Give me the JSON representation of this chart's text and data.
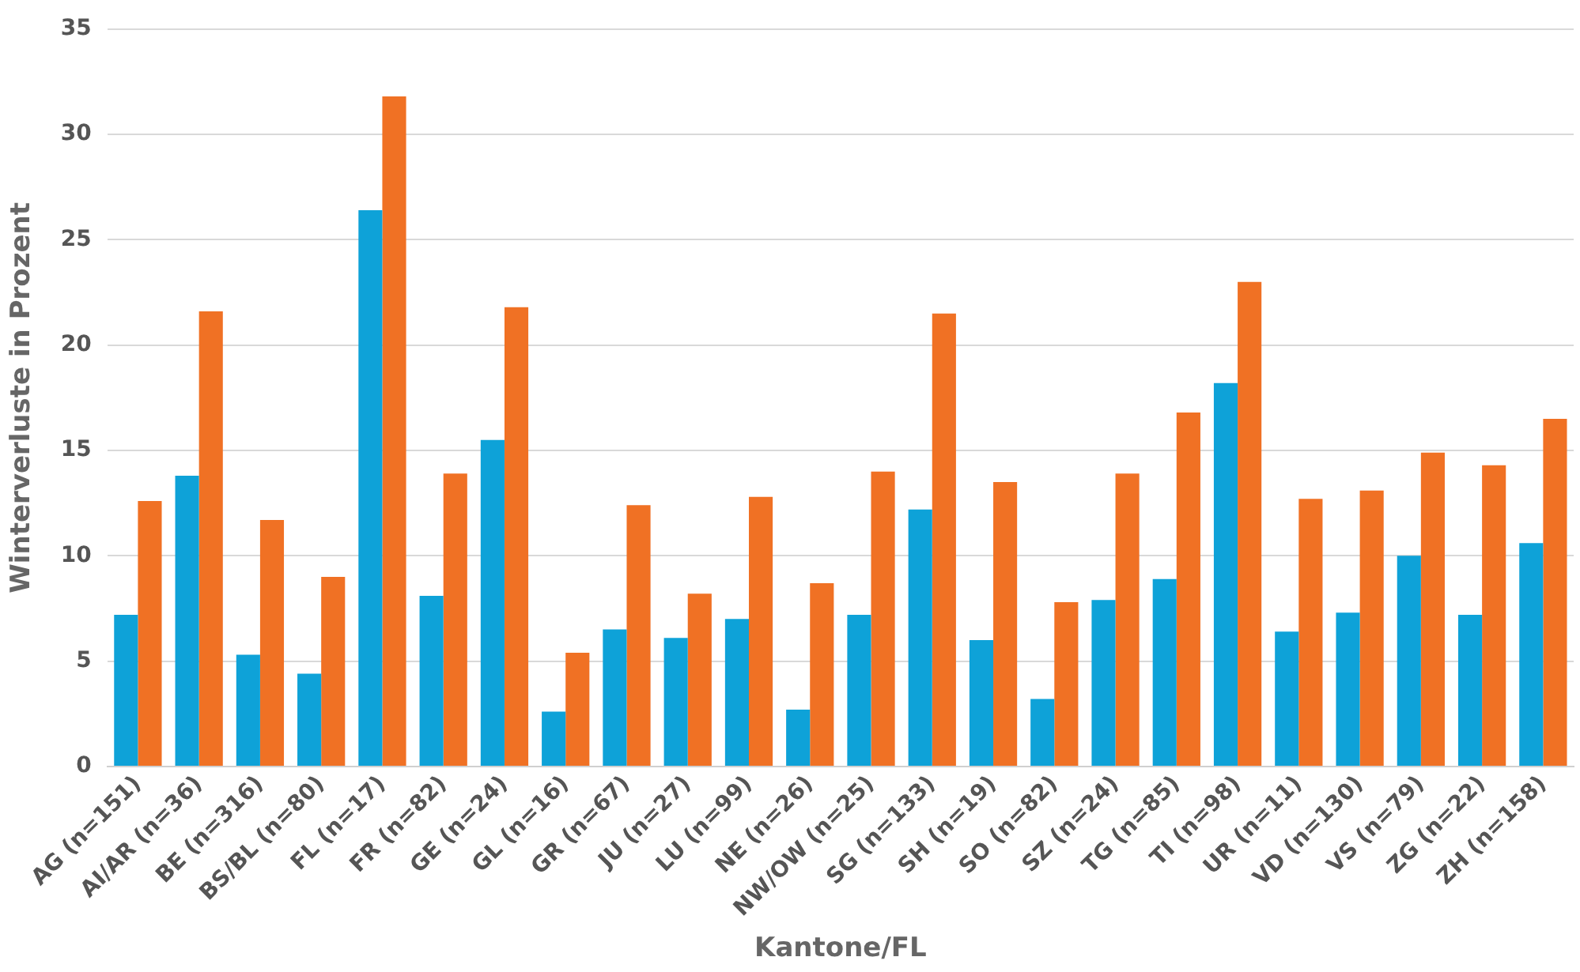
{
  "chart_data": {
    "type": "bar",
    "xlabel": "Kantone/FL",
    "ylabel": "Winterverluste in Prozent",
    "categories": [
      "AG (n=151)",
      "AI/AR (n=36)",
      "BE (n=316)",
      "BS/BL (n=80)",
      "FL (n=17)",
      "FR (n=82)",
      "GE (n=24)",
      "GL (n=16)",
      "GR (n=67)",
      "JU (n=27)",
      "LU (n=99)",
      "NE (n=26)",
      "NW/OW (n=25)",
      "SG (n=133)",
      "SH (n=19)",
      "SO (n=82)",
      "SZ (n=24)",
      "TG (n=85)",
      "TI (n=98)",
      "UR (n=11)",
      "VD (n=130)",
      "VS (n=79)",
      "ZG (n=22)",
      "ZH (n=158)"
    ],
    "series": [
      {
        "color": "#0ea2d8",
        "values": [
          7.2,
          13.8,
          5.3,
          4.4,
          26.4,
          8.1,
          15.5,
          2.6,
          6.5,
          6.1,
          7.0,
          2.7,
          7.2,
          12.2,
          6.0,
          3.2,
          7.9,
          8.9,
          18.2,
          6.4,
          7.3,
          10.0,
          7.2,
          10.6
        ]
      },
      {
        "color": "#f07124",
        "values": [
          12.6,
          21.6,
          11.7,
          9.0,
          31.8,
          13.9,
          21.8,
          5.4,
          12.4,
          8.2,
          12.8,
          8.7,
          14.0,
          21.5,
          13.5,
          7.8,
          13.9,
          16.8,
          23.0,
          12.7,
          13.1,
          14.9,
          14.3,
          16.5
        ]
      }
    ],
    "ylim": [
      0,
      35
    ],
    "yticks": [
      0,
      5,
      10,
      15,
      20,
      25,
      30,
      35
    ],
    "grid": "y",
    "legend": false
  }
}
